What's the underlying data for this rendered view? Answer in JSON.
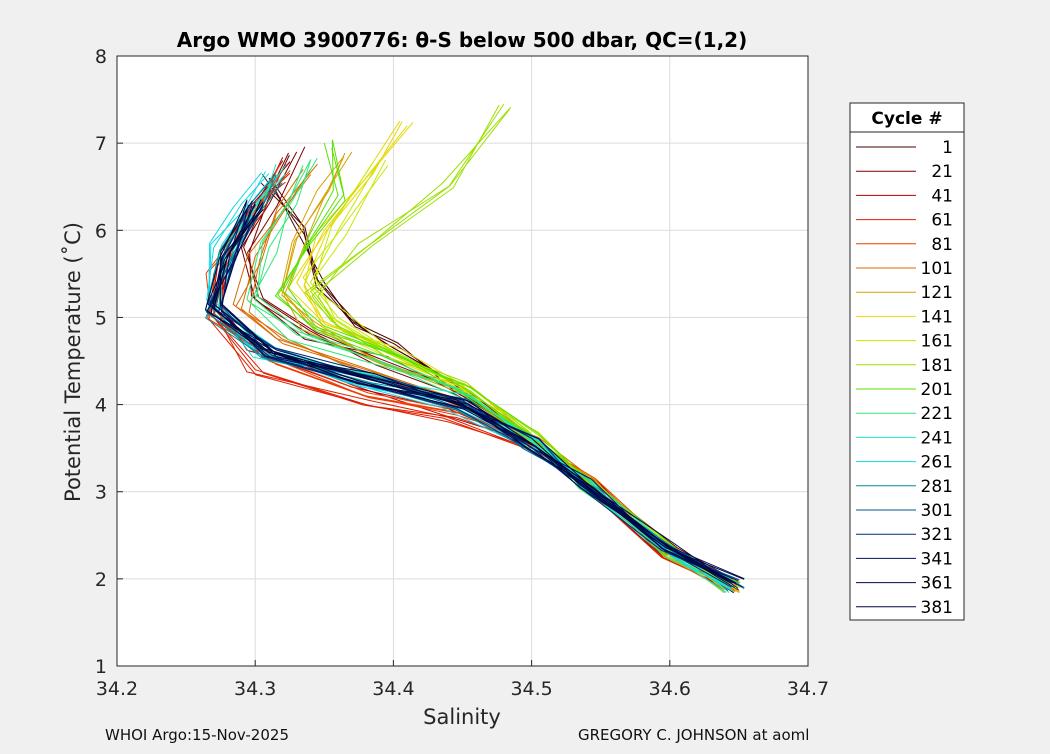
{
  "chart_data": {
    "type": "line",
    "title": "Argo WMO 3900776: θ-S below 500 dbar,  QC=(1,2)",
    "xlabel": "Salinity",
    "ylabel": "Potential Temperature (˚C)",
    "xlim": [
      34.2,
      34.7
    ],
    "ylim": [
      1,
      8
    ],
    "xticks": [
      "34.2",
      "34.3",
      "34.4",
      "34.5",
      "34.6",
      "34.7"
    ],
    "yticks": [
      "1",
      "2",
      "3",
      "4",
      "5",
      "6",
      "7",
      "8"
    ],
    "grid": true,
    "legend_title": "Cycle #",
    "legend_placement": "right",
    "series": [
      {
        "name": "1",
        "color": "#4a0000",
        "S": [
          34.645,
          34.6,
          34.54,
          34.5,
          34.45,
          34.4,
          34.37,
          34.35,
          34.33,
          34.31
        ],
        "T": [
          1.9,
          2.3,
          3.1,
          3.6,
          4.2,
          4.65,
          4.95,
          5.4,
          6.0,
          6.6
        ]
      },
      {
        "name": "21",
        "color": "#7a0000",
        "S": [
          34.645,
          34.6,
          34.54,
          34.5,
          34.45,
          34.39,
          34.34,
          34.3,
          34.29,
          34.31,
          34.33
        ],
        "T": [
          1.9,
          2.3,
          3.1,
          3.6,
          4.15,
          4.5,
          4.8,
          5.2,
          5.8,
          6.3,
          6.9
        ]
      },
      {
        "name": "41",
        "color": "#b00000",
        "S": [
          34.645,
          34.6,
          34.54,
          34.5,
          34.44,
          34.37,
          34.3,
          34.27,
          34.28,
          34.3,
          34.32
        ],
        "T": [
          1.9,
          2.3,
          3.1,
          3.55,
          3.95,
          4.2,
          4.6,
          5.1,
          5.8,
          6.3,
          6.8
        ]
      },
      {
        "name": "61",
        "color": "#e02000",
        "S": [
          34.645,
          34.6,
          34.54,
          34.5,
          34.44,
          34.38,
          34.3,
          34.27,
          34.28,
          34.3,
          34.32
        ],
        "T": [
          1.9,
          2.3,
          3.1,
          3.5,
          3.8,
          4.0,
          4.4,
          5.0,
          5.7,
          6.2,
          6.6
        ]
      },
      {
        "name": "81",
        "color": "#f03a00",
        "S": [
          34.645,
          34.6,
          34.54,
          34.5,
          34.45,
          34.38,
          34.31,
          34.27,
          34.27,
          34.29,
          34.32
        ],
        "T": [
          1.9,
          2.3,
          3.1,
          3.55,
          3.9,
          4.1,
          4.5,
          5.0,
          5.5,
          6.1,
          6.7
        ]
      },
      {
        "name": "101",
        "color": "#d96b00",
        "S": [
          34.645,
          34.6,
          34.54,
          34.5,
          34.44,
          34.38,
          34.32,
          34.29,
          34.3,
          34.32,
          34.34
        ],
        "T": [
          1.9,
          2.3,
          3.1,
          3.6,
          4.1,
          4.4,
          4.7,
          5.1,
          5.7,
          6.2,
          6.7
        ]
      },
      {
        "name": "121",
        "color": "#d9a000",
        "S": [
          34.645,
          34.6,
          34.54,
          34.5,
          34.45,
          34.39,
          34.34,
          34.32,
          34.33,
          34.35,
          34.37
        ],
        "T": [
          1.9,
          2.3,
          3.1,
          3.6,
          4.15,
          4.5,
          4.9,
          5.3,
          5.9,
          6.4,
          6.9
        ]
      },
      {
        "name": "141",
        "color": "#e8d800",
        "S": [
          34.645,
          34.6,
          34.54,
          34.5,
          34.45,
          34.4,
          34.35,
          34.33,
          34.35,
          34.38,
          34.41
        ],
        "T": [
          1.9,
          2.3,
          3.1,
          3.65,
          4.2,
          4.6,
          4.95,
          5.4,
          6.0,
          6.6,
          7.2
        ]
      },
      {
        "name": "161",
        "color": "#c8e800",
        "S": [
          34.645,
          34.6,
          34.54,
          34.5,
          34.45,
          34.4,
          34.36,
          34.34,
          34.36,
          34.39
        ],
        "T": [
          1.9,
          2.3,
          3.1,
          3.65,
          4.2,
          4.6,
          5.0,
          5.4,
          6.0,
          6.8
        ]
      },
      {
        "name": "181",
        "color": "#9be000",
        "S": [
          34.645,
          34.6,
          34.54,
          34.5,
          34.45,
          34.4,
          34.36,
          34.34,
          34.38,
          34.44,
          34.48
        ],
        "T": [
          1.9,
          2.3,
          3.1,
          3.65,
          4.2,
          4.6,
          4.9,
          5.3,
          5.8,
          6.5,
          7.45
        ]
      },
      {
        "name": "201",
        "color": "#5ae000",
        "S": [
          34.645,
          34.6,
          34.54,
          34.5,
          34.45,
          34.4,
          34.35,
          34.32,
          34.34,
          34.36,
          34.35
        ],
        "T": [
          1.9,
          2.3,
          3.1,
          3.65,
          4.2,
          4.6,
          4.9,
          5.3,
          5.9,
          6.4,
          7.0
        ]
      },
      {
        "name": "221",
        "color": "#2ee87a",
        "S": [
          34.645,
          34.6,
          34.54,
          34.5,
          34.45,
          34.39,
          34.33,
          34.3,
          34.31,
          34.33,
          34.34
        ],
        "T": [
          1.9,
          2.3,
          3.1,
          3.6,
          4.15,
          4.5,
          4.8,
          5.2,
          5.8,
          6.3,
          6.8
        ]
      },
      {
        "name": "241",
        "color": "#1ae8c8",
        "S": [
          34.645,
          34.6,
          34.54,
          34.5,
          34.45,
          34.38,
          34.31,
          34.27,
          34.28,
          34.3,
          34.32
        ],
        "T": [
          1.9,
          2.3,
          3.1,
          3.55,
          4.05,
          4.35,
          4.6,
          5.1,
          5.8,
          6.3,
          6.7
        ]
      },
      {
        "name": "261",
        "color": "#10d8e8",
        "S": [
          34.645,
          34.6,
          34.54,
          34.5,
          34.44,
          34.37,
          34.3,
          34.265,
          34.27,
          34.29,
          34.31
        ],
        "T": [
          1.9,
          2.3,
          3.1,
          3.55,
          4.0,
          4.25,
          4.6,
          5.2,
          5.8,
          6.3,
          6.65
        ]
      },
      {
        "name": "281",
        "color": "#008c9c",
        "S": [
          34.648,
          34.6,
          34.54,
          34.5,
          34.45,
          34.38,
          34.31,
          34.27,
          34.28,
          34.3,
          34.32
        ],
        "T": [
          1.95,
          2.35,
          3.1,
          3.55,
          4.0,
          4.3,
          4.55,
          5.05,
          5.7,
          6.2,
          6.6
        ]
      },
      {
        "name": "301",
        "color": "#005a8c",
        "S": [
          34.648,
          34.6,
          34.54,
          34.5,
          34.45,
          34.38,
          34.31,
          34.27,
          34.28,
          34.3
        ],
        "T": [
          1.95,
          2.35,
          3.1,
          3.55,
          4.0,
          4.3,
          4.6,
          5.1,
          5.7,
          6.3
        ]
      },
      {
        "name": "321",
        "color": "#002a7a",
        "S": [
          34.648,
          34.6,
          34.54,
          34.5,
          34.45,
          34.38,
          34.31,
          34.27,
          34.28,
          34.3
        ],
        "T": [
          1.95,
          2.35,
          3.1,
          3.55,
          4.0,
          4.3,
          4.6,
          5.1,
          5.7,
          6.3
        ]
      },
      {
        "name": "341",
        "color": "#001060",
        "S": [
          34.648,
          34.6,
          34.54,
          34.5,
          34.45,
          34.38,
          34.31,
          34.27,
          34.28,
          34.3
        ],
        "T": [
          1.95,
          2.35,
          3.1,
          3.55,
          4.0,
          4.3,
          4.6,
          5.1,
          5.7,
          6.3
        ]
      },
      {
        "name": "361",
        "color": "#00084a",
        "S": [
          34.648,
          34.6,
          34.54,
          34.5,
          34.45,
          34.38,
          34.31,
          34.27,
          34.28,
          34.3
        ],
        "T": [
          1.95,
          2.35,
          3.1,
          3.55,
          4.0,
          4.3,
          4.6,
          5.1,
          5.7,
          6.3
        ]
      },
      {
        "name": "381",
        "color": "#000640",
        "S": [
          34.648,
          34.6,
          34.54,
          34.5,
          34.45,
          34.38,
          34.31,
          34.27,
          34.28,
          34.3
        ],
        "T": [
          1.95,
          2.35,
          3.1,
          3.55,
          4.0,
          4.3,
          4.6,
          5.1,
          5.7,
          6.3
        ]
      }
    ]
  },
  "footer": {
    "left": "WHOI Argo:15-Nov-2025",
    "right": "GREGORY C. JOHNSON at aoml"
  }
}
